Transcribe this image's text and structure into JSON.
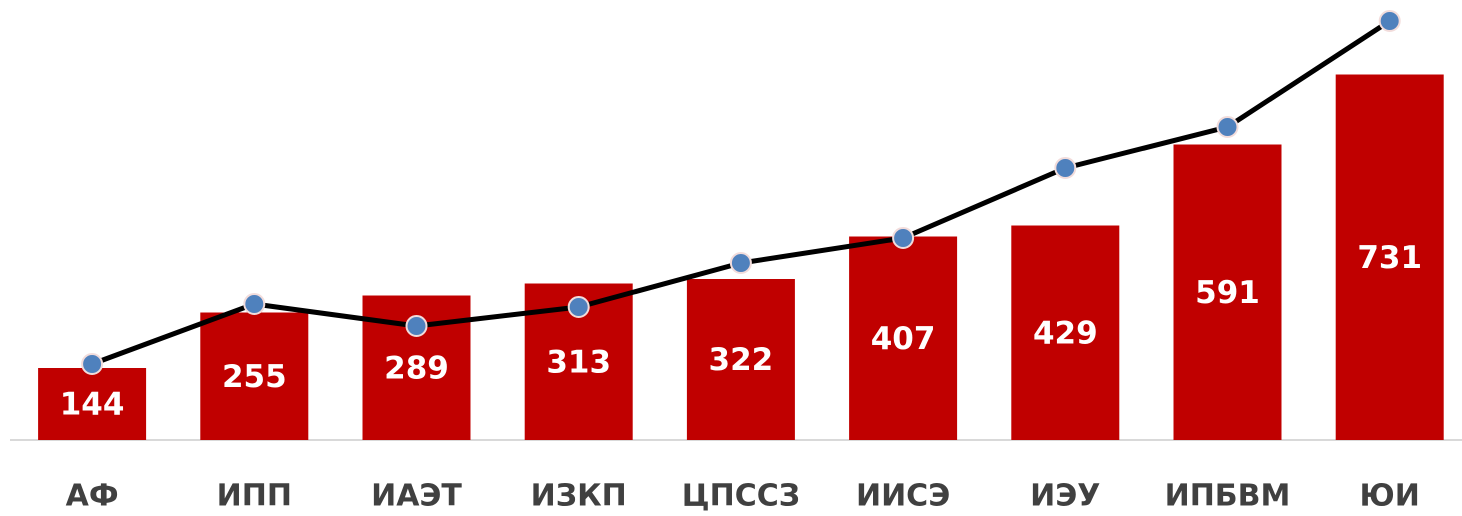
{
  "chart_data": {
    "type": "bar",
    "categories": [
      "АФ",
      "ИПП",
      "ИАЭТ",
      "ИЗКП",
      "ЦПССЗ",
      "ИИСЭ",
      "ИЭУ",
      "ИПБВМ",
      "ЮИ"
    ],
    "series": [
      {
        "type": "bar",
        "color": "#c00000",
        "values": [
          144,
          255,
          289,
          313,
          322,
          407,
          429,
          591,
          731
        ]
      },
      {
        "type": "line",
        "color": "#000000",
        "marker_color": "#4f81bd",
        "values": [
          152,
          272,
          228,
          266,
          354,
          404,
          544,
          626,
          838
        ]
      }
    ],
    "ylim": [
      0,
      880
    ]
  }
}
